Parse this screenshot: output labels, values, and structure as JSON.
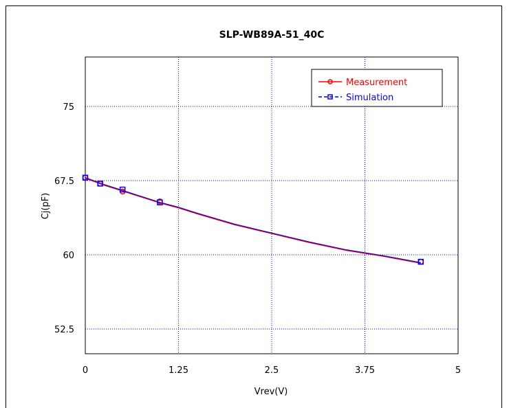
{
  "chart_data": {
    "type": "line",
    "title": "SLP-WB89A-51_40C",
    "xlabel": "Vrev(V)",
    "ylabel": "Cj(pF)",
    "xlim": [
      0,
      5
    ],
    "ylim": [
      50,
      80
    ],
    "x_ticks": [
      "0",
      "1.25",
      "2.5",
      "3.75",
      "5"
    ],
    "y_ticks": [
      "52.5",
      "60",
      "67.5",
      "75"
    ],
    "grid": true,
    "legend_position": "top-right",
    "series": [
      {
        "name": "Measurement",
        "color": "#ff0000",
        "marker": "circle",
        "x": [
          0,
          0.2,
          0.5,
          1.0,
          4.5
        ],
        "y": [
          67.8,
          67.2,
          66.4,
          65.4,
          59.3
        ]
      },
      {
        "name": "Simulation",
        "color": "#0000ff",
        "marker": "square",
        "x": [
          0,
          0.2,
          0.5,
          1.0,
          4.5
        ],
        "y": [
          67.8,
          67.2,
          66.6,
          65.3,
          59.3
        ]
      }
    ],
    "curve": {
      "x": [
        0,
        0.25,
        0.5,
        0.75,
        1.0,
        1.25,
        1.5,
        2.0,
        2.5,
        3.0,
        3.5,
        4.0,
        4.5
      ],
      "y": [
        67.8,
        67.1,
        66.5,
        65.9,
        65.3,
        64.8,
        64.2,
        63.1,
        62.2,
        61.3,
        60.5,
        59.9,
        59.2
      ]
    }
  }
}
